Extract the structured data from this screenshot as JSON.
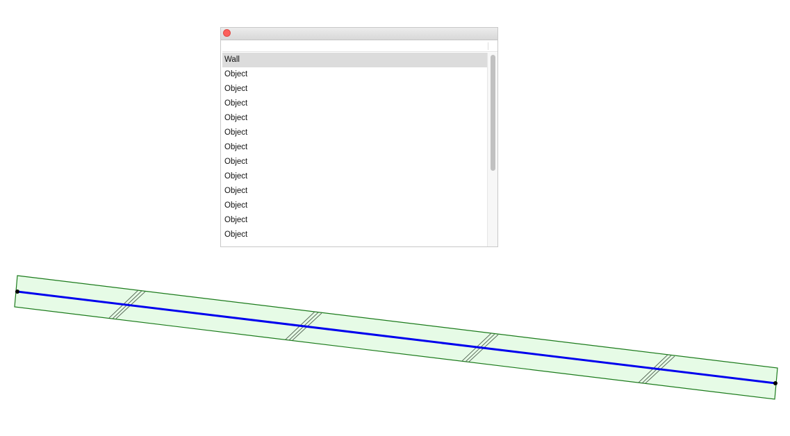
{
  "list": {
    "items": [
      "Wall",
      "Object",
      "Object",
      "Object",
      "Object",
      "Object",
      "Object",
      "Object",
      "Object",
      "Object",
      "Object",
      "Object",
      "Object"
    ]
  }
}
